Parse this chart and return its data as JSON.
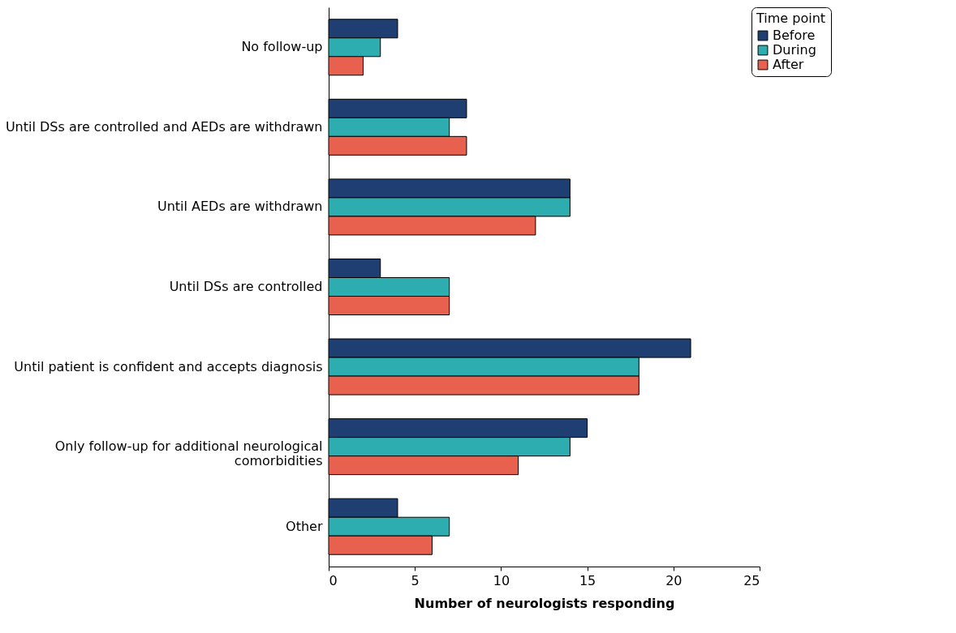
{
  "chart_data": {
    "type": "bar",
    "orientation": "horizontal",
    "xlabel": "Number of neurologists responding",
    "legend_title": "Time point",
    "legend": "right",
    "grid": false,
    "categories": [
      "No follow-up",
      "Until DSs are controlled and AEDs are withdrawn",
      "Until AEDs are withdrawn",
      "Until DSs are controlled",
      "Until patient is confident and accepts diagnosis",
      "Only follow-up for additional neurological comorbidities",
      "Other"
    ],
    "series": [
      {
        "name": "Before",
        "color": "#1f3f73",
        "values": [
          4,
          8,
          14,
          3,
          21,
          15,
          4
        ]
      },
      {
        "name": "During",
        "color": "#2eadb1",
        "values": [
          3,
          7,
          14,
          7,
          18,
          14,
          7
        ]
      },
      {
        "name": "After",
        "color": "#e8604e",
        "values": [
          2,
          8,
          12,
          7,
          18,
          11,
          6
        ]
      }
    ],
    "xlim": [
      0,
      25
    ],
    "xticks": [
      0,
      5,
      10,
      15,
      20,
      25
    ]
  }
}
